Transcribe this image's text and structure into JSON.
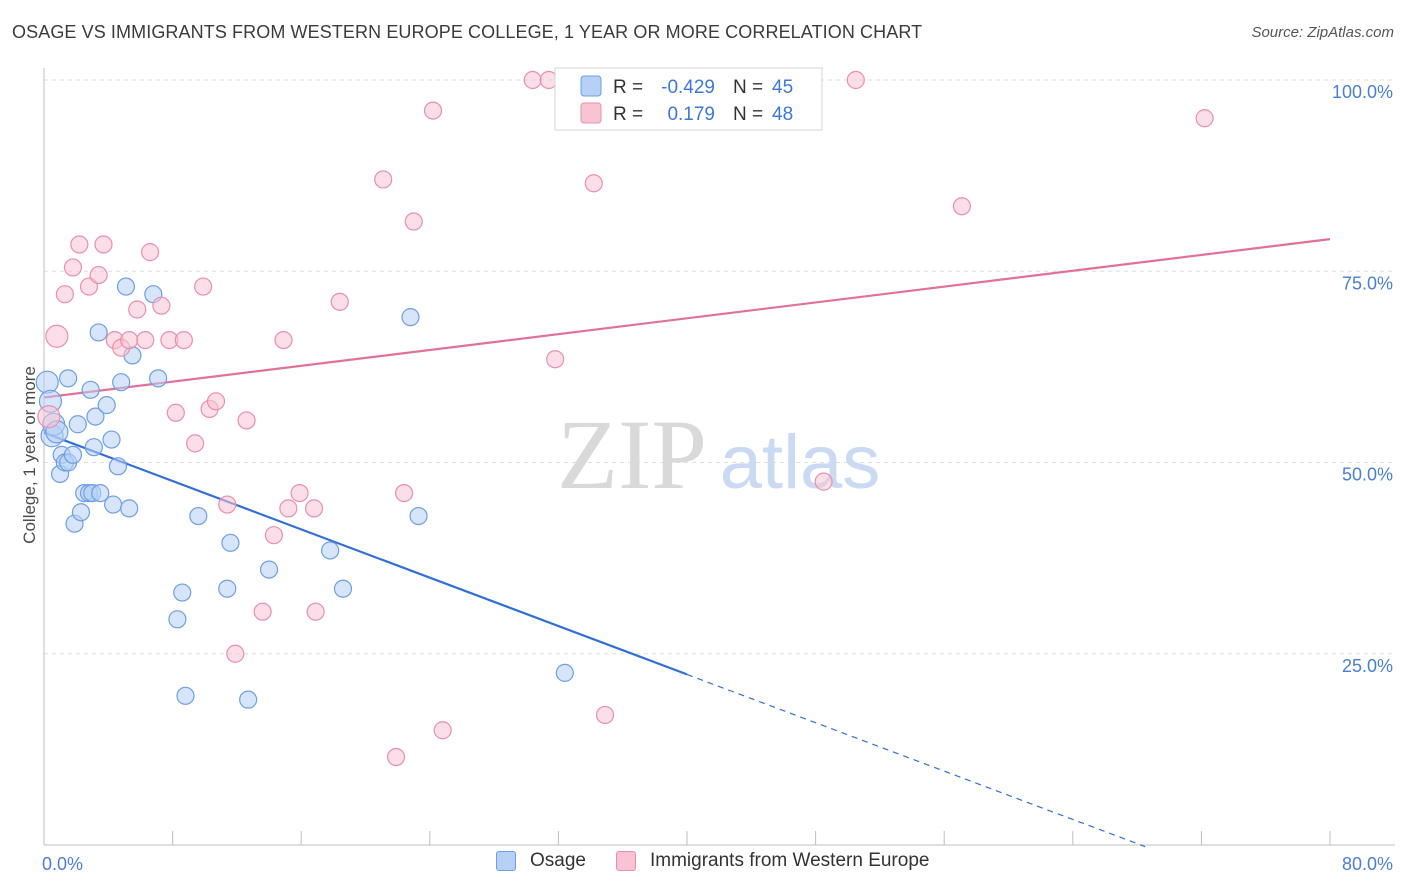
{
  "title": "OSAGE VS IMMIGRANTS FROM WESTERN EUROPE COLLEGE, 1 YEAR OR MORE CORRELATION CHART",
  "source": "Source: ZipAtlas.com",
  "watermark": {
    "zip": "ZIP",
    "atlas": "atlas"
  },
  "colors": {
    "blue_fill": "#b7d0f5",
    "blue_stroke": "#6f9fe0",
    "blue_line": "#2f6fd6",
    "pink_fill": "#f8c3d3",
    "pink_stroke": "#e890ab",
    "pink_line": "#e0729a",
    "tick_text": "#4a7fd1"
  },
  "legend": {
    "rows": [
      {
        "series": "Osage",
        "r_label": "R =",
        "r_value": "-0.429",
        "n_label": "N =",
        "n_value": "45"
      },
      {
        "series": "Immigrants from Western Europe",
        "r_label": "R =",
        "r_value": "0.179",
        "n_label": "N =",
        "n_value": "48"
      }
    ]
  },
  "bottom_legend": [
    "Osage",
    "Immigrants from Western Europe"
  ],
  "chart_data": {
    "type": "scatter",
    "title": "OSAGE VS IMMIGRANTS FROM WESTERN EUROPE COLLEGE, 1 YEAR OR MORE CORRELATION CHART",
    "xlabel": "",
    "ylabel": "College, 1 year or more",
    "xlim": [
      0,
      80
    ],
    "ylim": [
      0,
      100
    ],
    "x_tick_labels": [
      "0.0%",
      "80.0%"
    ],
    "y_tick_labels": [
      "100.0%",
      "75.0%",
      "50.0%",
      "25.0%"
    ],
    "y_tick_values": [
      100,
      75,
      50,
      25
    ],
    "grid": true,
    "series": [
      {
        "name": "Osage",
        "color": "blue",
        "points": [
          [
            0.2,
            60.5
          ],
          [
            0.4,
            58
          ],
          [
            0.5,
            53.5
          ],
          [
            0.6,
            55
          ],
          [
            0.8,
            54
          ],
          [
            1.0,
            48.5
          ],
          [
            1.1,
            51
          ],
          [
            1.3,
            50
          ],
          [
            1.5,
            61
          ],
          [
            1.5,
            50
          ],
          [
            1.8,
            51
          ],
          [
            1.9,
            42
          ],
          [
            2.1,
            55
          ],
          [
            2.3,
            43.5
          ],
          [
            2.5,
            46
          ],
          [
            2.8,
            46
          ],
          [
            2.9,
            59.5
          ],
          [
            3.0,
            46
          ],
          [
            3.1,
            52
          ],
          [
            3.2,
            56
          ],
          [
            3.4,
            67
          ],
          [
            3.5,
            46
          ],
          [
            3.9,
            57.5
          ],
          [
            4.2,
            53
          ],
          [
            4.3,
            44.5
          ],
          [
            4.6,
            49.5
          ],
          [
            4.8,
            60.5
          ],
          [
            5.1,
            73
          ],
          [
            5.3,
            44
          ],
          [
            5.5,
            64
          ],
          [
            6.8,
            72
          ],
          [
            7.1,
            61
          ],
          [
            8.3,
            29.5
          ],
          [
            8.6,
            33
          ],
          [
            8.8,
            19.5
          ],
          [
            9.6,
            43
          ],
          [
            11.4,
            33.5
          ],
          [
            11.6,
            39.5
          ],
          [
            12.7,
            19
          ],
          [
            14.0,
            36
          ],
          [
            17.8,
            38.5
          ],
          [
            18.6,
            33.5
          ],
          [
            22.8,
            69
          ],
          [
            23.3,
            43
          ],
          [
            32.4,
            22.5
          ]
        ],
        "trend": {
          "x0": 0,
          "y0": 53.9,
          "x1": 40,
          "y1": 22.3,
          "dashed_to_x": 68.5
        }
      },
      {
        "name": "Immigrants from Western Europe",
        "color": "pink",
        "points": [
          [
            0.3,
            56
          ],
          [
            0.8,
            66.5
          ],
          [
            1.3,
            72
          ],
          [
            1.8,
            75.5
          ],
          [
            2.2,
            78.5
          ],
          [
            2.8,
            73
          ],
          [
            3.4,
            74.5
          ],
          [
            3.7,
            78.5
          ],
          [
            4.4,
            66
          ],
          [
            4.8,
            65
          ],
          [
            5.3,
            66
          ],
          [
            5.8,
            70
          ],
          [
            6.3,
            66
          ],
          [
            6.6,
            77.5
          ],
          [
            7.3,
            70.5
          ],
          [
            7.8,
            66
          ],
          [
            8.2,
            56.5
          ],
          [
            8.7,
            66
          ],
          [
            9.4,
            52.5
          ],
          [
            9.9,
            73
          ],
          [
            10.3,
            57
          ],
          [
            10.7,
            58
          ],
          [
            11.4,
            44.5
          ],
          [
            11.9,
            25
          ],
          [
            12.6,
            55.5
          ],
          [
            13.6,
            30.5
          ],
          [
            14.3,
            40.5
          ],
          [
            14.9,
            66
          ],
          [
            15.2,
            44
          ],
          [
            15.9,
            46
          ],
          [
            16.8,
            44
          ],
          [
            16.9,
            30.5
          ],
          [
            18.4,
            71
          ],
          [
            21.1,
            87
          ],
          [
            21.9,
            11.5
          ],
          [
            22.4,
            46
          ],
          [
            23.0,
            81.5
          ],
          [
            24.2,
            96
          ],
          [
            24.8,
            15
          ],
          [
            30.4,
            100
          ],
          [
            31.4,
            100
          ],
          [
            31.8,
            63.5
          ],
          [
            34.2,
            86.5
          ],
          [
            34.9,
            17
          ],
          [
            48.5,
            47.5
          ],
          [
            50.5,
            100
          ],
          [
            57.1,
            83.5
          ],
          [
            72.2,
            95
          ]
        ],
        "trend": {
          "x0": 0,
          "y0": 58.5,
          "x1": 80,
          "y1": 79.2
        }
      }
    ]
  }
}
